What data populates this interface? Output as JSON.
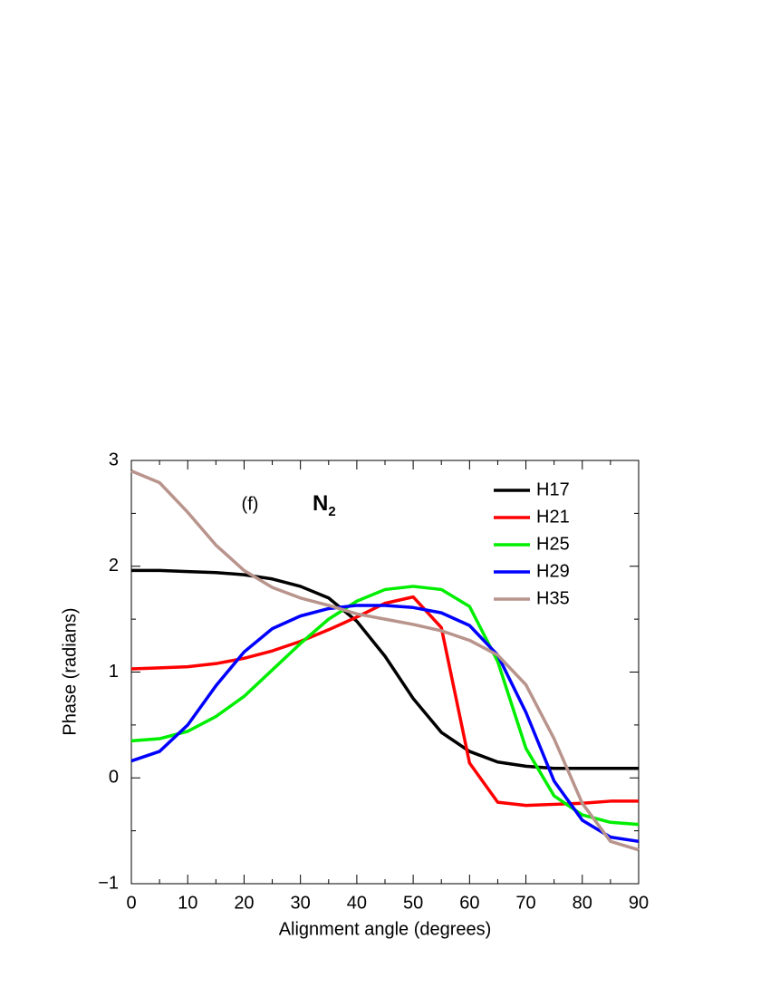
{
  "chart_data": {
    "type": "line",
    "xlabel": "Alignment angle (degrees)",
    "ylabel": "Phase (radians)",
    "annotations": [
      {
        "text": "(f)"
      },
      {
        "text": "N",
        "subscript": "2"
      }
    ],
    "x": [
      0,
      5,
      10,
      15,
      20,
      25,
      30,
      35,
      40,
      45,
      50,
      55,
      60,
      65,
      70,
      75,
      80,
      85,
      90
    ],
    "series": [
      {
        "name": "H17",
        "color": "#000000",
        "values": [
          1.96,
          1.96,
          1.95,
          1.94,
          1.92,
          1.88,
          1.81,
          1.7,
          1.48,
          1.15,
          0.75,
          0.43,
          0.25,
          0.15,
          0.11,
          0.09,
          0.09,
          0.09,
          0.09
        ]
      },
      {
        "name": "H21",
        "color": "#ff0000",
        "values": [
          1.03,
          1.04,
          1.05,
          1.08,
          1.13,
          1.2,
          1.29,
          1.4,
          1.52,
          1.65,
          1.71,
          1.42,
          0.14,
          -0.23,
          -0.26,
          -0.25,
          -0.24,
          -0.22,
          -0.22
        ]
      },
      {
        "name": "H25",
        "color": "#00ee00",
        "values": [
          0.35,
          0.37,
          0.44,
          0.58,
          0.77,
          1.02,
          1.27,
          1.5,
          1.67,
          1.78,
          1.81,
          1.78,
          1.62,
          1.1,
          0.28,
          -0.17,
          -0.35,
          -0.42,
          -0.44
        ]
      },
      {
        "name": "H29",
        "color": "#0000ff",
        "values": [
          0.16,
          0.25,
          0.5,
          0.87,
          1.19,
          1.41,
          1.53,
          1.6,
          1.63,
          1.63,
          1.61,
          1.56,
          1.44,
          1.16,
          0.62,
          -0.03,
          -0.4,
          -0.56,
          -0.6
        ]
      },
      {
        "name": "H35",
        "color": "#b8948c",
        "values": [
          2.9,
          2.79,
          2.51,
          2.2,
          1.96,
          1.8,
          1.7,
          1.63,
          1.55,
          1.5,
          1.45,
          1.39,
          1.3,
          1.16,
          0.88,
          0.37,
          -0.24,
          -0.6,
          -0.68
        ]
      }
    ],
    "xlim": [
      0,
      90
    ],
    "xticks": [
      0,
      10,
      20,
      30,
      40,
      50,
      60,
      70,
      80,
      90
    ],
    "ylim": [
      -1,
      3
    ],
    "yticks": [
      {
        "value": -1,
        "label": "−1"
      },
      0,
      1,
      2,
      3
    ],
    "legend": "upper right"
  }
}
